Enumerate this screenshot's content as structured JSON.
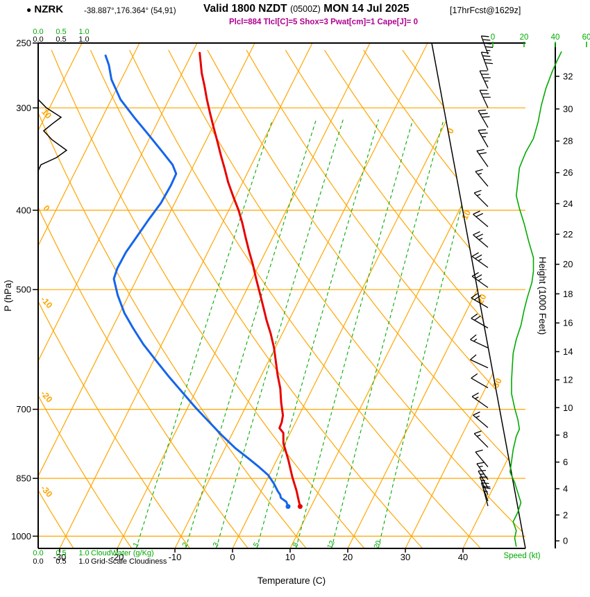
{
  "header": {
    "bullet": "●",
    "station": "NZRK",
    "coords": "-38.887°,176.364° (54,91)",
    "valid_main": "Valid 1800 NZDT",
    "valid_z": "(0500Z)",
    "valid_date": "MON 14 Jul 2025",
    "fcst": "[17hrFcst@1629z]",
    "indices": "Plcl=884 Tlcl[C]=5 Shox=3 Pwat[cm]=1 Cape[J]= 0"
  },
  "axes": {
    "pressure_label": "P (hPa)",
    "pressure_ticks": [
      250,
      300,
      400,
      500,
      700,
      850,
      1000
    ],
    "temp_label": "Temperature (C)",
    "temp_ticks": [
      -30,
      -20,
      -10,
      0,
      10,
      20,
      30,
      40
    ],
    "height_label": "Height (1000 Feet)",
    "height_ticks": [
      0,
      2,
      4,
      6,
      8,
      10,
      12,
      14,
      16,
      18,
      20,
      22,
      24,
      26,
      28,
      30,
      32
    ],
    "speed_label": "Speed (kt)",
    "speed_ticks": [
      0,
      20,
      40,
      60
    ],
    "cloudwater_label": "CloudWater (g/Kg)",
    "cloudiness_label": "Grid-Scale Cloudiness",
    "cloud_ticks": [
      "0.0",
      "0.5",
      "1.0"
    ]
  },
  "colors": {
    "orange": "#FFA500",
    "green": "#00AA00",
    "red": "#E80000",
    "blue": "#1565EB",
    "magenta": "#B00090",
    "black": "#000000"
  },
  "chart_data": {
    "type": "line",
    "diagram": "skew-t log-p sounding",
    "pressure_range_hpa": [
      250,
      1035
    ],
    "temp_axis_range_c": [
      -30,
      40
    ],
    "grid": {
      "isotherm_min": -80,
      "isotherm_max": 40,
      "isotherm_step": 10,
      "adiabat_min": -40,
      "adiabat_max": 130,
      "adiabat_step": 10
    },
    "isobars": [
      300,
      400,
      500,
      700,
      850,
      1000
    ],
    "isotherm_labels": [
      0,
      10,
      20,
      30
    ],
    "adiabat_labels": [
      10,
      0,
      -10,
      -20,
      -30
    ],
    "mixing_ratio_lines": [
      1,
      2,
      3,
      5,
      8,
      12,
      20
    ],
    "temperature_profile": [
      [
        920,
        8.1
      ],
      [
        900,
        7.1
      ],
      [
        880,
        6.1
      ],
      [
        847,
        4.2
      ],
      [
        807,
        2.0
      ],
      [
        770,
        -0.3
      ],
      [
        748,
        -1.2
      ],
      [
        738,
        -2.3
      ],
      [
        726,
        -2.4
      ],
      [
        712,
        -2.8
      ],
      [
        687,
        -4.2
      ],
      [
        660,
        -5.6
      ],
      [
        636,
        -7.2
      ],
      [
        612,
        -8.7
      ],
      [
        589,
        -10.2
      ],
      [
        566,
        -12.0
      ],
      [
        545,
        -13.9
      ],
      [
        524,
        -15.7
      ],
      [
        504,
        -17.5
      ],
      [
        485,
        -19.3
      ],
      [
        466,
        -21.1
      ],
      [
        449,
        -22.9
      ],
      [
        432,
        -24.7
      ],
      [
        415,
        -26.5
      ],
      [
        400,
        -28.3
      ],
      [
        385,
        -30.4
      ],
      [
        370,
        -32.5
      ],
      [
        356,
        -34.3
      ],
      [
        343,
        -36.1
      ],
      [
        330,
        -37.9
      ],
      [
        317,
        -39.8
      ],
      [
        305,
        -41.6
      ],
      [
        293,
        -43.4
      ],
      [
        282,
        -45.0
      ],
      [
        272,
        -46.6
      ],
      [
        264,
        -47.7
      ],
      [
        257,
        -48.7
      ]
    ],
    "dewpoint_profile": [
      [
        920,
        6.0
      ],
      [
        908,
        5.3
      ],
      [
        898,
        4.0
      ],
      [
        890,
        3.6
      ],
      [
        880,
        2.8
      ],
      [
        863,
        1.6
      ],
      [
        842,
        -0.2
      ],
      [
        823,
        -2.5
      ],
      [
        804,
        -5.0
      ],
      [
        781,
        -8.2
      ],
      [
        752,
        -11.8
      ],
      [
        724,
        -15.2
      ],
      [
        697,
        -18.6
      ],
      [
        667,
        -22.3
      ],
      [
        639,
        -25.9
      ],
      [
        611,
        -29.5
      ],
      [
        583,
        -33.2
      ],
      [
        557,
        -36.4
      ],
      [
        534,
        -39.2
      ],
      [
        508,
        -41.9
      ],
      [
        485,
        -44.0
      ],
      [
        471,
        -44.3
      ],
      [
        450,
        -44.2
      ],
      [
        432,
        -43.7
      ],
      [
        411,
        -43.1
      ],
      [
        392,
        -42.4
      ],
      [
        373,
        -42.2
      ],
      [
        361,
        -42.3
      ],
      [
        352,
        -43.7
      ],
      [
        339,
        -46.7
      ],
      [
        323,
        -50.6
      ],
      [
        308,
        -54.5
      ],
      [
        293,
        -58.4
      ],
      [
        277,
        -61.7
      ],
      [
        266,
        -63.4
      ],
      [
        259,
        -64.8
      ]
    ],
    "wind_barbs": [
      [
        258,
        340,
        45
      ],
      [
        270,
        340,
        40
      ],
      [
        284,
        335,
        35
      ],
      [
        300,
        335,
        30
      ],
      [
        317,
        330,
        28
      ],
      [
        335,
        330,
        25
      ],
      [
        354,
        325,
        20
      ],
      [
        374,
        320,
        15
      ],
      [
        396,
        315,
        15
      ],
      [
        419,
        310,
        20
      ],
      [
        444,
        310,
        25
      ],
      [
        470,
        305,
        25
      ],
      [
        497,
        305,
        25
      ],
      [
        526,
        300,
        20
      ],
      [
        557,
        300,
        18
      ],
      [
        589,
        295,
        15
      ],
      [
        623,
        295,
        12
      ],
      [
        659,
        300,
        12
      ],
      [
        697,
        305,
        15
      ],
      [
        737,
        310,
        15
      ],
      [
        779,
        315,
        14
      ],
      [
        823,
        320,
        12
      ],
      [
        853,
        325,
        15
      ],
      [
        873,
        330,
        15
      ],
      [
        890,
        335,
        17
      ],
      [
        906,
        340,
        18
      ],
      [
        919,
        345,
        17
      ]
    ],
    "wind_speed_profile": [
      [
        1030,
        15
      ],
      [
        1005,
        14
      ],
      [
        985,
        15
      ],
      [
        960,
        13
      ],
      [
        935,
        16
      ],
      [
        910,
        18
      ],
      [
        885,
        16
      ],
      [
        860,
        14
      ],
      [
        835,
        11
      ],
      [
        810,
        12
      ],
      [
        784,
        13
      ],
      [
        755,
        15
      ],
      [
        740,
        17
      ],
      [
        720,
        16
      ],
      [
        698,
        14
      ],
      [
        670,
        12
      ],
      [
        645,
        12
      ],
      [
        620,
        12.5
      ],
      [
        598,
        13
      ],
      [
        575,
        15
      ],
      [
        553,
        18
      ],
      [
        530,
        20
      ],
      [
        512,
        22
      ],
      [
        490,
        25
      ],
      [
        475,
        26
      ],
      [
        457,
        26
      ],
      [
        437,
        23
      ],
      [
        415,
        20
      ],
      [
        398,
        17
      ],
      [
        384,
        15
      ],
      [
        370,
        16
      ],
      [
        355,
        17
      ],
      [
        340,
        21
      ],
      [
        327,
        26
      ],
      [
        312,
        29
      ],
      [
        298,
        31
      ],
      [
        284,
        34
      ],
      [
        271,
        38
      ],
      [
        263,
        41
      ],
      [
        256,
        44
      ]
    ],
    "cloudiness_profile": [
      [
        293,
        0.0
      ],
      [
        300,
        0.18
      ],
      [
        308,
        0.5
      ],
      [
        314,
        0.3
      ],
      [
        320,
        0.12
      ],
      [
        328,
        0.3
      ],
      [
        338,
        0.62
      ],
      [
        345,
        0.4
      ],
      [
        352,
        0.06
      ],
      [
        358,
        0.0
      ]
    ]
  }
}
